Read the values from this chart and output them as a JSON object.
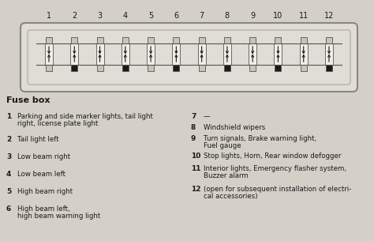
{
  "title": "Fuse box",
  "bg_color": "#d4d0c8",
  "fuse_count": 12,
  "fuse_labels": [
    "1",
    "2",
    "3",
    "4",
    "5",
    "6",
    "7",
    "8",
    "9",
    "10",
    "11",
    "12"
  ],
  "left_entries": [
    {
      "num": "1",
      "lines": [
        "Parking and side marker lights, tail light",
        "right, license plate light"
      ]
    },
    {
      "num": "2",
      "lines": [
        "Tail light left"
      ]
    },
    {
      "num": "3",
      "lines": [
        "Low beam right"
      ]
    },
    {
      "num": "4",
      "lines": [
        "Low beam left"
      ]
    },
    {
      "num": "5",
      "lines": [
        "High beam right"
      ]
    },
    {
      "num": "6",
      "lines": [
        "High beam left,",
        "high beam warning light"
      ]
    }
  ],
  "right_entries": [
    {
      "num": "7",
      "lines": [
        "—"
      ]
    },
    {
      "num": "8",
      "lines": [
        "Windshield wipers"
      ]
    },
    {
      "num": "9",
      "lines": [
        "Turn signals, Brake warning light,",
        "Fuel gauge"
      ]
    },
    {
      "num": "10",
      "lines": [
        "Stop lights, Horn, Rear window defogger"
      ]
    },
    {
      "num": "11",
      "lines": [
        "Interior lights, Emergency flasher system,",
        "Buzzer alarm"
      ]
    },
    {
      "num": "12",
      "lines": [
        "(open for subsequent installation of electri-",
        "cal accessories)"
      ]
    }
  ],
  "box_bg": "#e0dcd6",
  "box_edge": "#888880",
  "fuse_body_fill": "#f0ede8",
  "fuse_conn_fill": "#c8c4bc",
  "fuse_dark_fill": "#1a1a1a",
  "text_color": "#1a1a1a",
  "line_color": "#555550",
  "dark_stripe_positions": [
    1,
    3,
    5,
    7,
    9,
    11
  ]
}
